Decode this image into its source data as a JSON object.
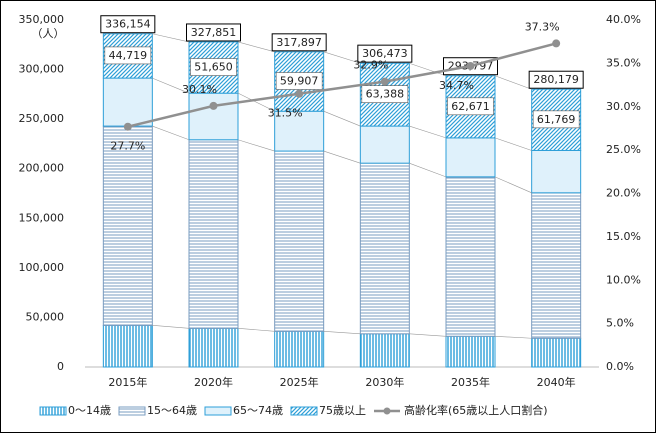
{
  "chart_data": {
    "type": "stacked_bar_line",
    "y_unit_label": "（人）",
    "categories": [
      "2015年",
      "2020年",
      "2025年",
      "2030年",
      "2035年",
      "2040年"
    ],
    "series": [
      {
        "name": "0～14歳",
        "color": "#2e9fd8",
        "pattern": "vertical",
        "values": [
          42000,
          39000,
          36000,
          33500,
          31000,
          29000
        ]
      },
      {
        "name": "15～64歳",
        "color": "#7a9cc0",
        "pattern": "horizontal",
        "values": [
          201000,
          190200,
          181800,
          172100,
          160800,
          146700
        ]
      },
      {
        "name": "65～74歳",
        "color": "#2e9fd8",
        "pattern": "solid",
        "values": [
          48400,
          47000,
          40200,
          37400,
          39300,
          42700
        ]
      },
      {
        "name": "75歳以上",
        "color": "#2e9fd8",
        "pattern": "diagonal",
        "values": [
          44719,
          51650,
          59907,
          63388,
          62671,
          61769
        ],
        "value_labels": [
          "44,719",
          "51,650",
          "59,907",
          "63,388",
          "62,671",
          "61,769"
        ]
      },
      {
        "name": "高齢化率(65歳以上人口割合)",
        "color": "#909090",
        "axis": "y2",
        "kind": "line",
        "values": [
          27.7,
          30.1,
          31.5,
          32.9,
          34.7,
          37.3
        ],
        "value_labels": [
          "27.7%",
          "30.1%",
          "31.5%",
          "32.9%",
          "34.7%",
          "37.3%"
        ]
      }
    ],
    "totals": [
      336154,
      327851,
      317897,
      306473,
      293797,
      280179
    ],
    "total_labels": [
      "336,154",
      "327,851",
      "317,897",
      "306,473",
      "293,797",
      "280,179"
    ],
    "ylim": [
      0,
      350000
    ],
    "yticks": [
      0,
      {
        "value": 50000,
        "label": "50,000"
      },
      {
        "value": 100000,
        "label": "100,000"
      },
      {
        "value": 150000,
        "label": "150,000"
      },
      {
        "value": 200000,
        "label": "200,000"
      },
      {
        "value": 250000,
        "label": "250,000"
      },
      {
        "value": 300000,
        "label": "300,000"
      },
      {
        "value": 350000,
        "label": "350,000"
      }
    ],
    "y2lim": [
      0,
      40
    ],
    "y2ticks": [
      {
        "value": 0,
        "label": "0.0%"
      },
      {
        "value": 5,
        "label": "5.0%"
      },
      {
        "value": 10,
        "label": "10.0%"
      },
      {
        "value": 15,
        "label": "15.0%"
      },
      {
        "value": 20,
        "label": "20.0%"
      },
      {
        "value": 25,
        "label": "25.0%"
      },
      {
        "value": 30,
        "label": "30.0%"
      },
      {
        "value": 35,
        "label": "35.0%"
      },
      {
        "value": 40,
        "label": "40.0%"
      }
    ],
    "legend": "bottom"
  }
}
